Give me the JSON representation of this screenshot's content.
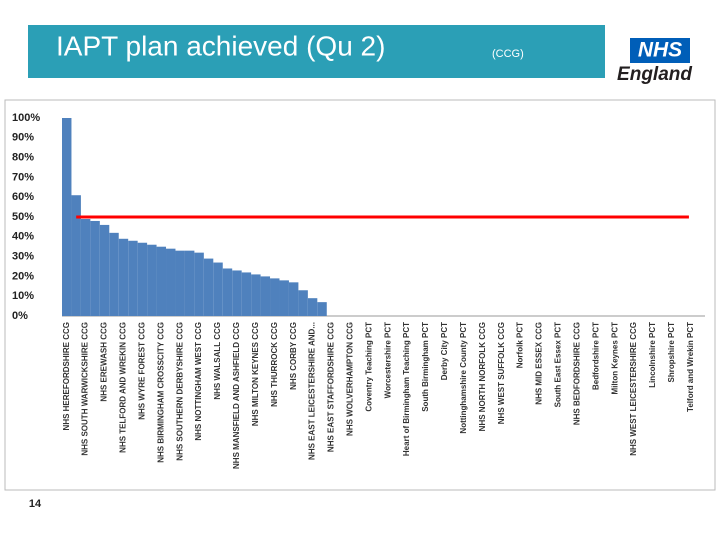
{
  "chart_data": {
    "type": "bar",
    "title": "IAPT plan achieved (Qu 2)",
    "subtitle": "(CCG)",
    "categories": [
      "NHS HEREFORDSHIRE CCG",
      null,
      "NHS SOUTH WARWICKSHIRE CCG",
      null,
      "NHS EREWASH CCG",
      null,
      "NHS TELFORD AND WREKIN CCG",
      null,
      "NHS WYRE FOREST CCG",
      null,
      "NHS BIRMINGHAM CROSSCITY CCG",
      null,
      "NHS SOUTHERN DERBYSHIRE CCG",
      null,
      "NHS NOTTINGHAM WEST CCG",
      null,
      "NHS WALSALL CCG",
      null,
      "NHS MANSFIELD AND ASHFIELD CCG",
      null,
      "NHS MILTON KEYNES CCG",
      null,
      "NHS THURROCK CCG",
      null,
      "NHS CORBY CCG",
      null,
      "NHS EAST LEICESTERSHIRE AND...",
      null,
      "NHS EAST STAFFORDSHIRE CCG",
      null,
      "NHS WOLVERHAMPTON CCG",
      null,
      "Coventry Teaching PCT",
      null,
      "Worcestershire PCT",
      null,
      "Heart of Birmingham Teaching PCT",
      null,
      "South Birmingham PCT",
      null,
      "Derby City PCT",
      null,
      "Nottinghamshire County PCT",
      null,
      "NHS NORTH NORFOLK CCG",
      null,
      "NHS WEST SUFFOLK CCG",
      null,
      "Norfolk PCT",
      null,
      "NHS MID ESSEX CCG",
      null,
      "South East Essex PCT",
      null,
      "NHS BEDFORDSHIRE CCG",
      null,
      "Bedfordshire PCT",
      null,
      "Milton Keynes PCT",
      null,
      "NHS WEST LEICESTERSHIRE CCG",
      null,
      "Lincolnshire PCT",
      null,
      "Shropshire PCT",
      null,
      "Telford and Wrekin PCT",
      null
    ],
    "values": [
      100,
      61,
      49,
      48,
      46,
      42,
      39,
      38,
      37,
      36,
      35,
      34,
      33,
      33,
      32,
      29,
      27,
      24,
      23,
      22,
      21,
      20,
      19,
      18,
      17,
      13,
      9,
      7,
      0,
      0,
      0,
      0,
      0,
      0,
      0,
      0,
      0,
      0,
      0,
      0,
      0,
      0,
      0,
      0,
      0,
      0,
      0,
      0,
      0,
      0,
      0,
      0,
      0,
      0,
      0,
      0,
      0,
      0,
      0,
      0,
      0,
      0,
      0,
      0,
      0,
      0,
      0,
      0
    ],
    "color": "#4f81bd",
    "reference_line": {
      "value": 50,
      "color": "#ff0000"
    },
    "ylim": [
      0,
      100
    ],
    "yticks": [
      {
        "value": 0,
        "label": "0%"
      },
      {
        "value": 10,
        "label": "10%"
      },
      {
        "value": 20,
        "label": "20%"
      },
      {
        "value": 30,
        "label": "30%"
      },
      {
        "value": 40,
        "label": "40%"
      },
      {
        "value": 50,
        "label": "50%"
      },
      {
        "value": 60,
        "label": "60%"
      },
      {
        "value": 70,
        "label": "70%"
      },
      {
        "value": 80,
        "label": "80%"
      },
      {
        "value": 90,
        "label": "90%"
      },
      {
        "value": 100,
        "label": "100%"
      }
    ],
    "grid": false
  },
  "logo": {
    "top": "NHS",
    "bottom": "England"
  },
  "page_number": "14"
}
